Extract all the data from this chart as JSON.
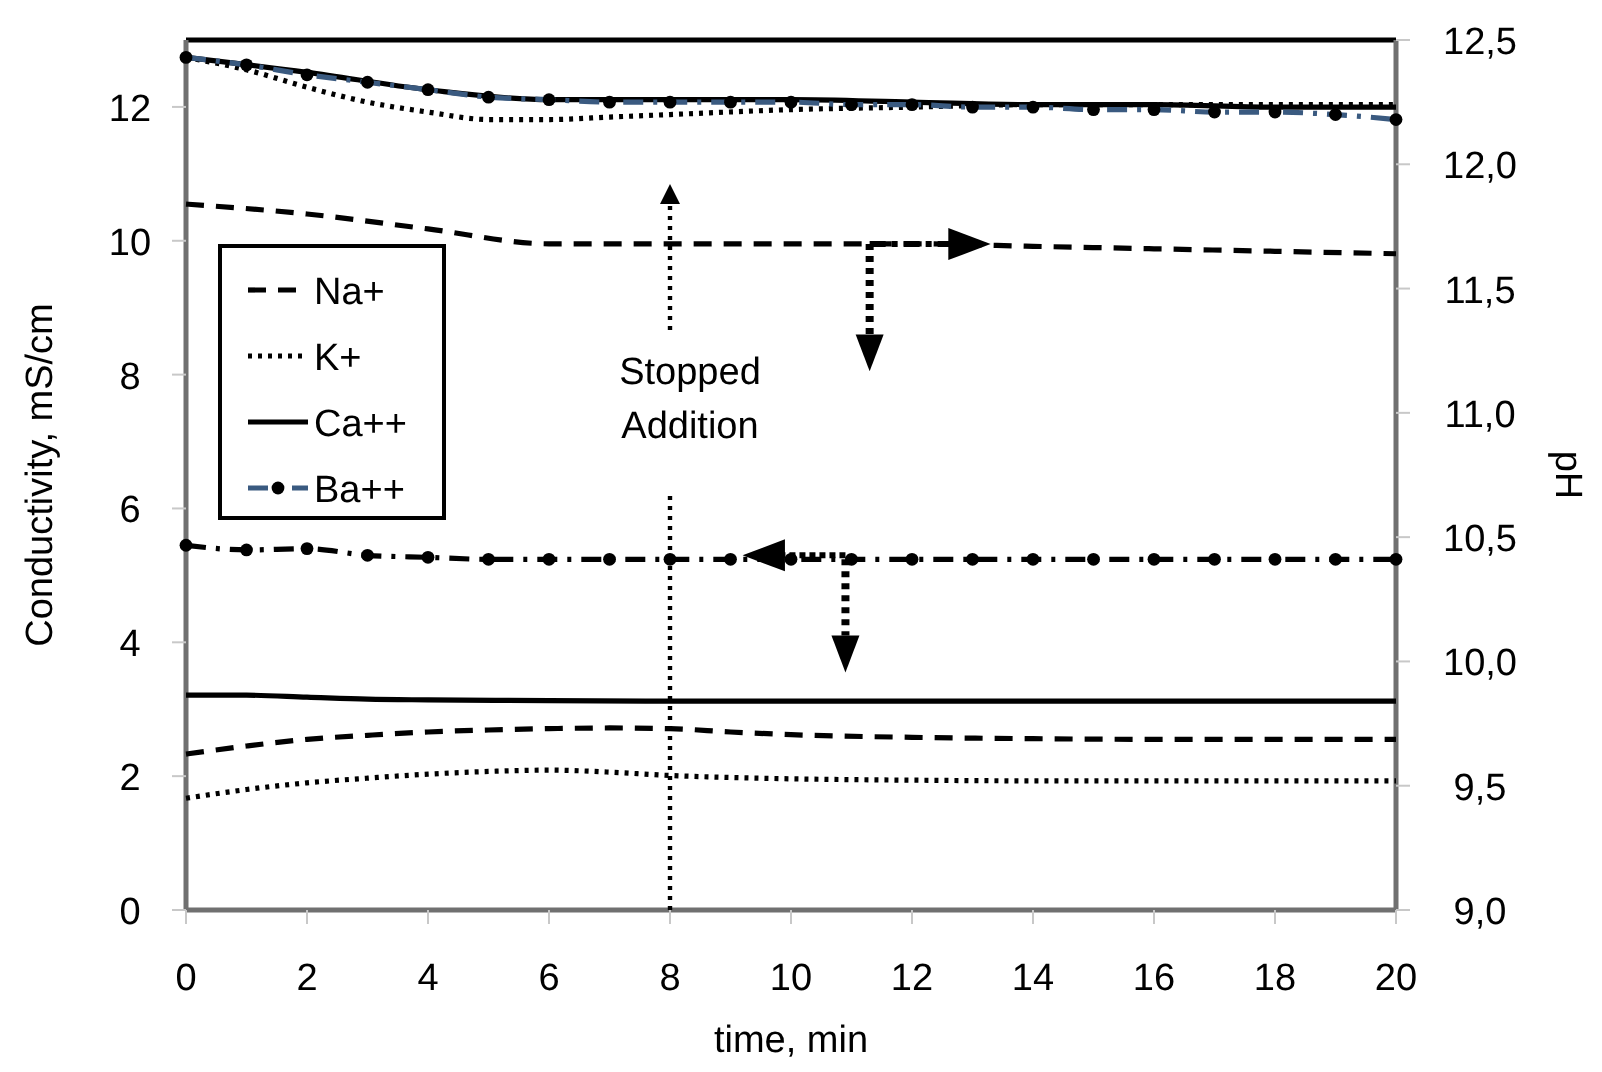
{
  "chart_data": {
    "type": "line",
    "xlabel": "time, min",
    "ylabel": "Conductivity, mS/cm",
    "y2label": "pH",
    "xlim": [
      0,
      20
    ],
    "xticks": [
      0,
      2,
      4,
      6,
      8,
      10,
      12,
      14,
      16,
      18,
      20
    ],
    "ylim": [
      0,
      13
    ],
    "yticks": [
      0,
      2,
      4,
      6,
      8,
      10,
      12
    ],
    "y2lim": [
      9,
      12.5
    ],
    "y2ticks": [
      {
        "value": 9,
        "label": "9,0"
      },
      {
        "value": 9.5,
        "label": "9,5"
      },
      {
        "value": 10,
        "label": "10,0"
      },
      {
        "value": 10.5,
        "label": "10,5"
      },
      {
        "value": 11,
        "label": "11,0"
      },
      {
        "value": 11.5,
        "label": "11,5"
      },
      {
        "value": 12,
        "label": "12,0"
      },
      {
        "value": 12.5,
        "label": "12,5"
      }
    ],
    "grid": false,
    "legend": "left",
    "ref_lines": [
      {
        "axis": "x",
        "value": 8,
        "label": "Stopped Addition",
        "line_style": "dotted",
        "color": "#000000"
      }
    ],
    "series": [
      {
        "name": "Na+",
        "color": "#000000",
        "line_style": "dashed",
        "marker": "none",
        "axis": "y2",
        "x": [
          0,
          2,
          4,
          6,
          8,
          10,
          12,
          14,
          16,
          18,
          20
        ],
        "values": [
          11.84,
          11.8,
          11.74,
          11.68,
          11.68,
          11.68,
          11.68,
          11.67,
          11.66,
          11.65,
          11.64
        ]
      },
      {
        "name": "K+",
        "color": "#000000",
        "line_style": "dotted",
        "marker": "none",
        "axis": "y2",
        "x": [
          0,
          1,
          2,
          3,
          4,
          5,
          6,
          7,
          8,
          10,
          12,
          14,
          16,
          18,
          20
        ],
        "values": [
          12.43,
          12.38,
          12.31,
          12.25,
          12.21,
          12.18,
          12.18,
          12.19,
          12.2,
          12.22,
          12.23,
          12.24,
          12.24,
          12.24,
          12.24
        ]
      },
      {
        "name": "Ca++",
        "color": "#000000",
        "line_style": "solid",
        "marker": "none",
        "axis": "y2",
        "x": [
          0,
          2,
          4,
          6,
          8,
          10,
          12,
          14,
          16,
          18,
          20
        ],
        "values": [
          12.43,
          12.37,
          12.3,
          12.26,
          12.26,
          12.26,
          12.25,
          12.24,
          12.24,
          12.23,
          12.23
        ]
      },
      {
        "name": "Ba++",
        "color": "#3a5a80",
        "line_style": "dashdot",
        "marker": "circle",
        "axis": "y2",
        "x": [
          0,
          1,
          2,
          3,
          4,
          5,
          6,
          7,
          8,
          9,
          10,
          11,
          12,
          13,
          14,
          15,
          16,
          17,
          18,
          19,
          20
        ],
        "values": [
          12.43,
          12.4,
          12.36,
          12.33,
          12.3,
          12.27,
          12.26,
          12.25,
          12.25,
          12.25,
          12.25,
          12.24,
          12.24,
          12.23,
          12.23,
          12.22,
          12.22,
          12.21,
          12.21,
          12.2,
          12.18
        ]
      },
      {
        "color": "#000000",
        "line_style": "dashed",
        "marker": "none",
        "x": [
          0,
          1,
          2,
          3,
          4,
          5,
          6,
          7,
          8,
          9,
          10,
          12,
          14,
          16,
          18,
          20
        ],
        "values": [
          2.33,
          2.45,
          2.55,
          2.61,
          2.66,
          2.69,
          2.71,
          2.72,
          2.71,
          2.66,
          2.62,
          2.58,
          2.56,
          2.55,
          2.55,
          2.55
        ]
      },
      {
        "color": "#000000",
        "line_style": "dotted",
        "marker": "none",
        "x": [
          0,
          1,
          2,
          3,
          4,
          5,
          6,
          7,
          8,
          9,
          10,
          12,
          14,
          16,
          18,
          20
        ],
        "values": [
          1.67,
          1.8,
          1.9,
          1.97,
          2.03,
          2.07,
          2.09,
          2.06,
          2.01,
          1.98,
          1.96,
          1.94,
          1.93,
          1.93,
          1.93,
          1.93
        ]
      },
      {
        "color": "#000000",
        "line_style": "solid",
        "marker": "none",
        "x": [
          0,
          1,
          2,
          3,
          4,
          6,
          8,
          10,
          12,
          14,
          16,
          18,
          20
        ],
        "values": [
          3.21,
          3.21,
          3.18,
          3.15,
          3.14,
          3.13,
          3.12,
          3.12,
          3.12,
          3.12,
          3.12,
          3.12,
          3.12
        ]
      },
      {
        "color": "#000000",
        "line_style": "dashdot",
        "marker": "circle",
        "x": [
          0,
          1,
          2,
          3,
          4,
          5,
          6,
          7,
          8,
          9,
          10,
          11,
          12,
          13,
          14,
          15,
          16,
          17,
          18,
          19,
          20
        ],
        "values": [
          5.45,
          5.38,
          5.4,
          5.3,
          5.27,
          5.24,
          5.24,
          5.24,
          5.24,
          5.24,
          5.24,
          5.24,
          5.24,
          5.24,
          5.24,
          5.24,
          5.24,
          5.24,
          5.24,
          5.24,
          5.24
        ]
      }
    ]
  }
}
